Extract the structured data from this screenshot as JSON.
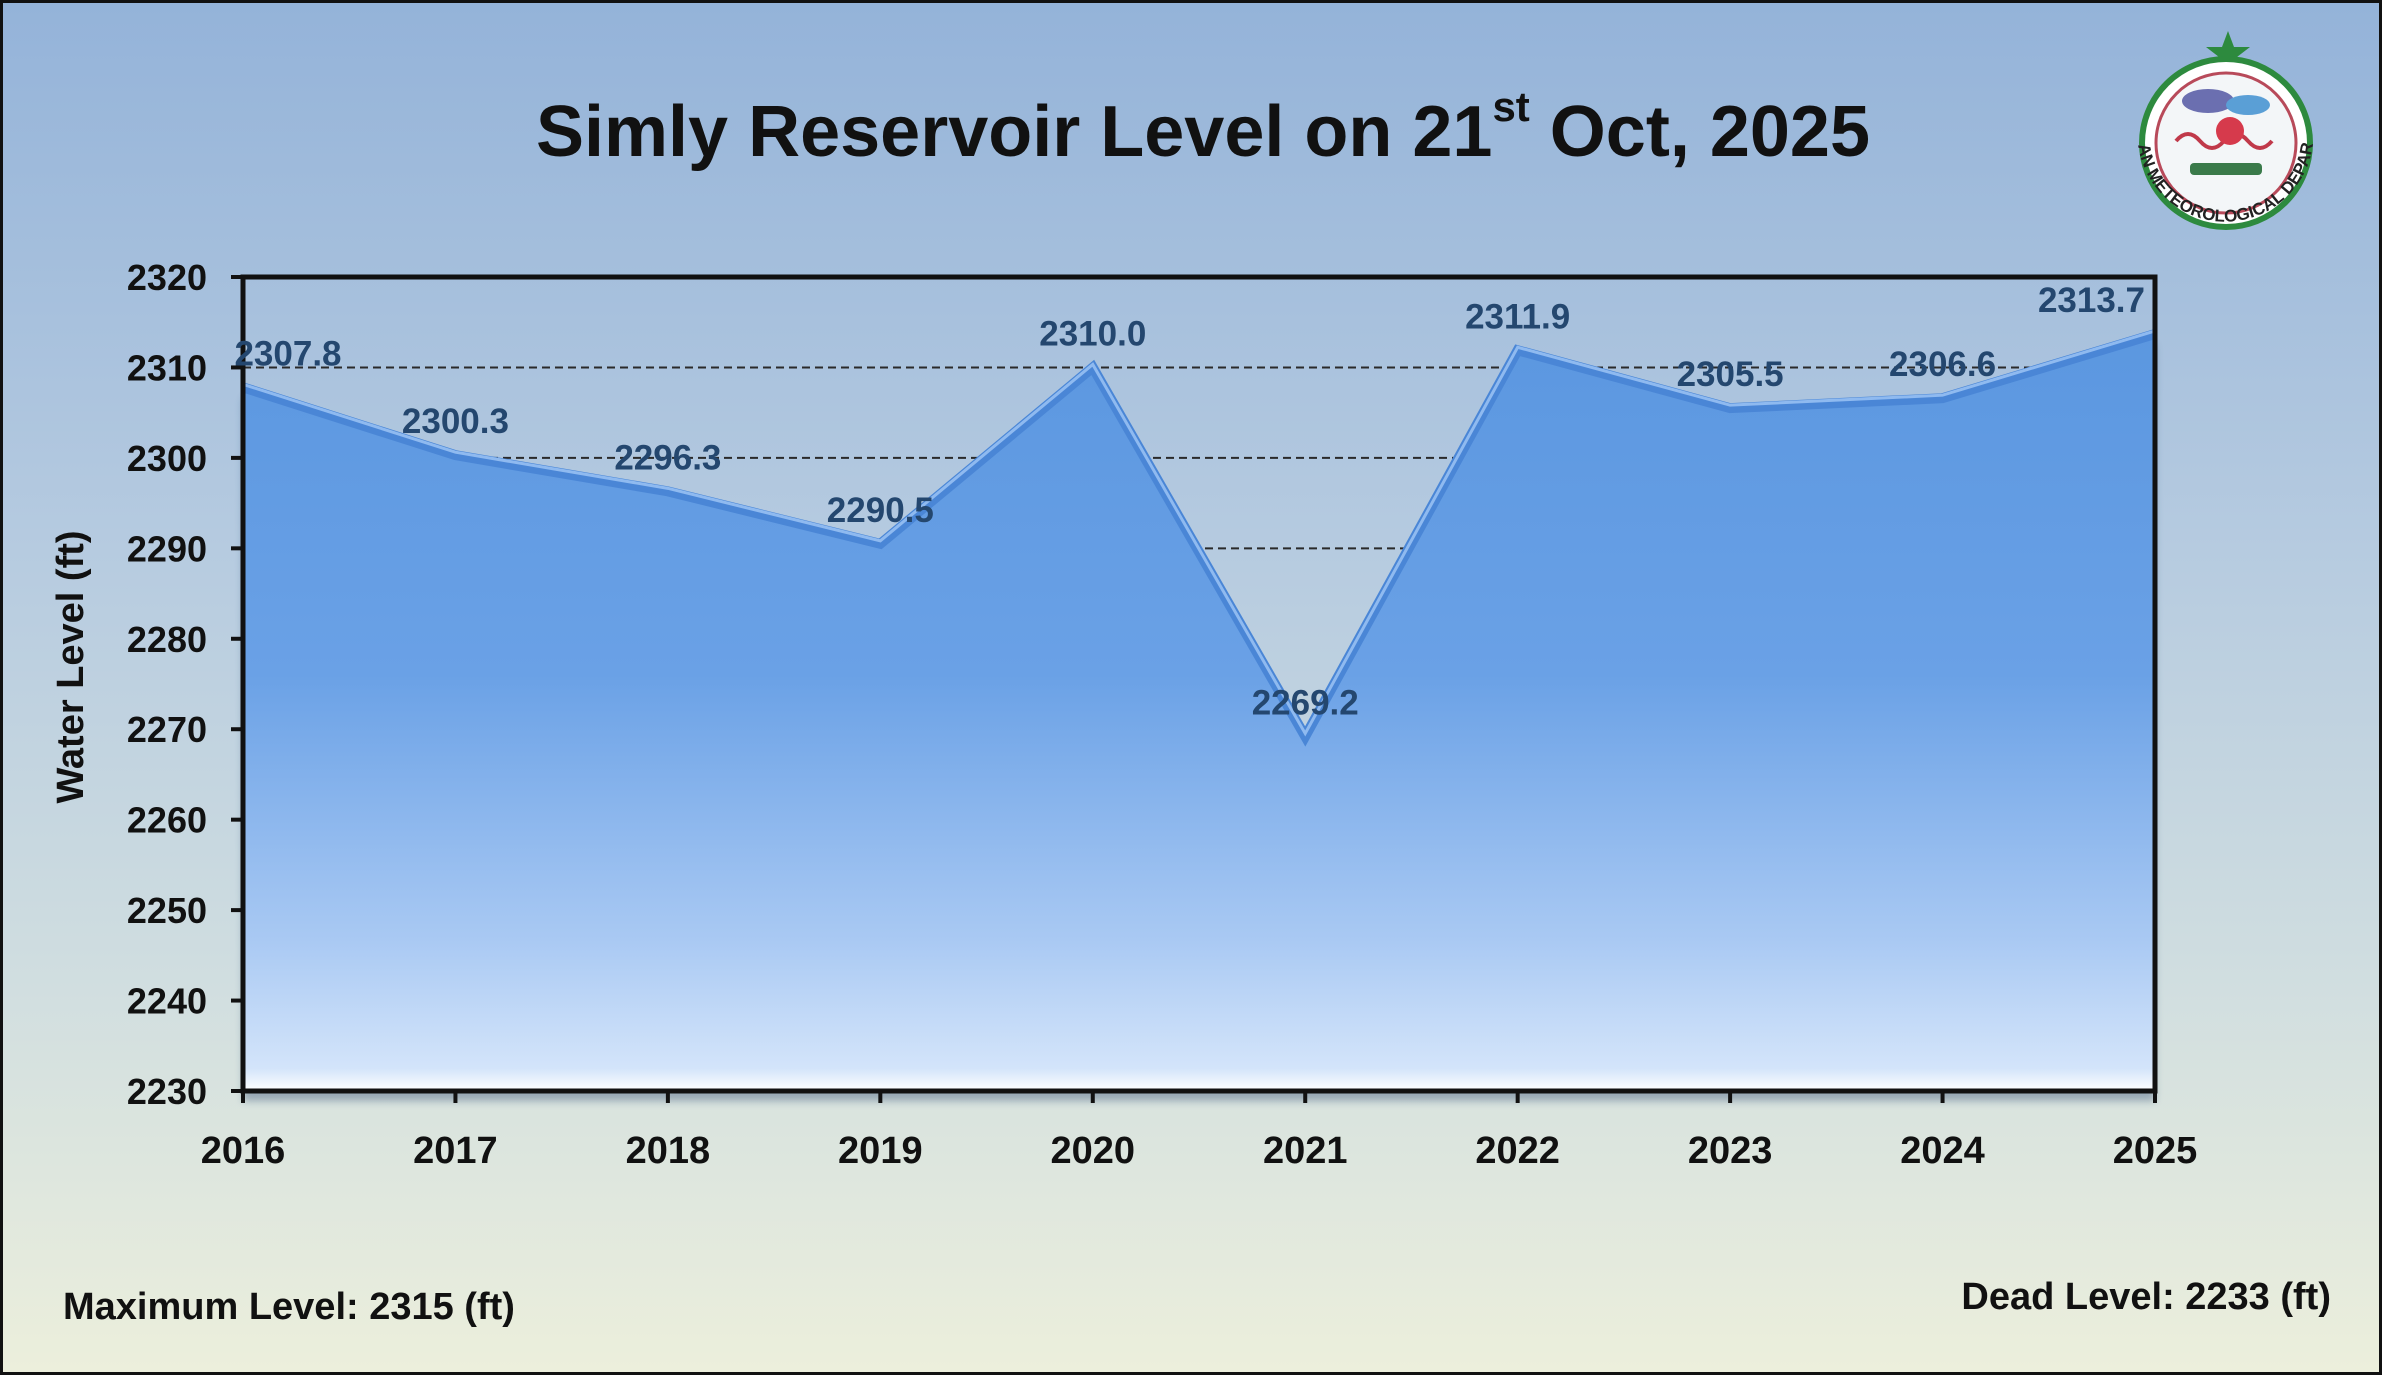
{
  "title": {
    "main": "Simly Reservoir Level on 21",
    "superscript": "st",
    "rest": " Oct, 2025"
  },
  "footer": {
    "max_level": "Maximum Level: 2315 (ft)",
    "dead_level": "Dead Level: 2233 (ft)"
  },
  "logo": {
    "text": "PAKISTAN METEOROLOGICAL DEPARTMENT",
    "icon": "pmd-emblem-icon"
  },
  "colors": {
    "area_top": "#5b97e0",
    "area_bottom": "#d3e4fa",
    "label": "#24476f",
    "axis": "#111111"
  },
  "chart_data": {
    "type": "area",
    "x": [
      "2016",
      "2017",
      "2018",
      "2019",
      "2020",
      "2021",
      "2022",
      "2023",
      "2024",
      "2025"
    ],
    "values": [
      2307.8,
      2300.3,
      2296.3,
      2290.5,
      2310.0,
      2269.2,
      2311.9,
      2305.5,
      2306.6,
      2313.7
    ],
    "data_labels": [
      "2307.8",
      "2300.3",
      "2296.3",
      "2290.5",
      "2310.0",
      "2269.2",
      "2311.9",
      "2305.5",
      "2306.6",
      "2313.7"
    ],
    "ylabel": "Water Level (ft)",
    "xlabel": "",
    "ylim": [
      2230,
      2320
    ],
    "yticks": [
      2230,
      2240,
      2250,
      2260,
      2270,
      2280,
      2290,
      2300,
      2310,
      2320
    ],
    "grid": "dashed horizontal at 2290, 2300, 2310",
    "legend": "none"
  }
}
